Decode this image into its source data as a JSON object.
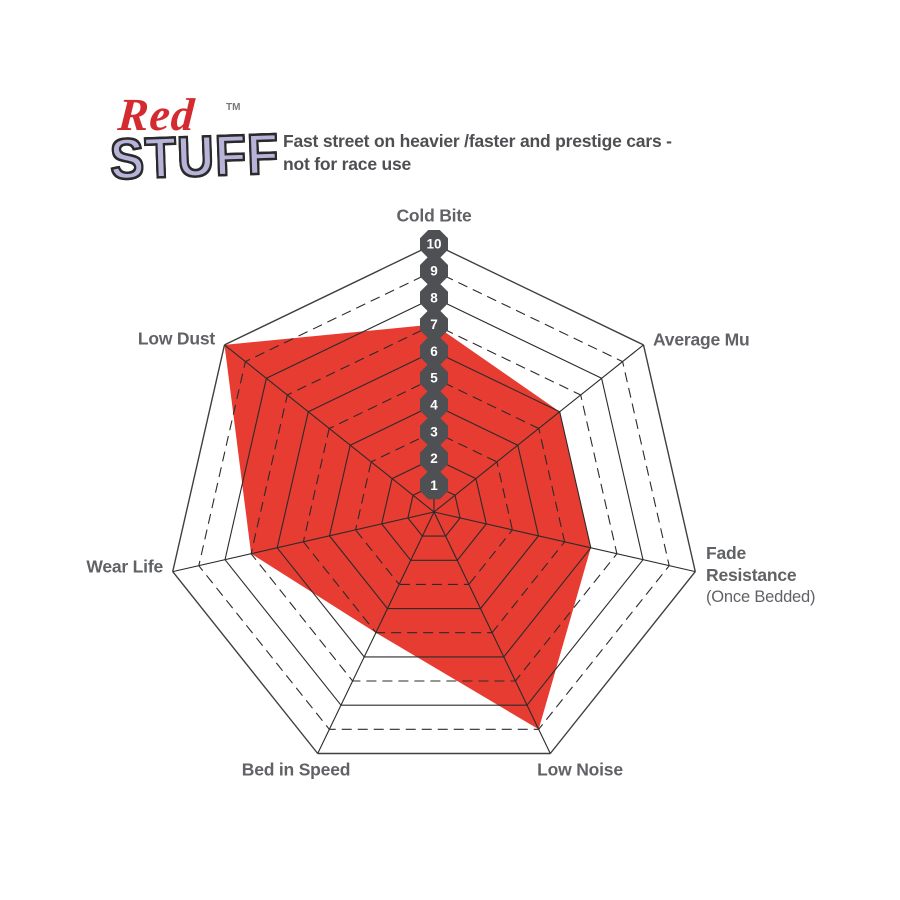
{
  "logo": {
    "red_text": "Red",
    "stuff_text": "STUFF",
    "tm": "TM",
    "red_color": "#d42b30",
    "stuff_color": "#b7b3d9"
  },
  "header": {
    "description": "Fast street on heavier /faster and prestige cars -\nnot for race use"
  },
  "labels": {
    "cold_bite": "Cold Bite",
    "average_mu": "Average Mu",
    "fade_line1": "Fade",
    "fade_line2": "Resistance",
    "fade_sub": "(Once Bedded)",
    "low_noise": "Low Noise",
    "bed_in_speed": "Bed in Speed",
    "wear_life": "Wear Life",
    "low_dust": "Low Dust"
  },
  "chart_data": {
    "type": "radar",
    "categories": [
      "Cold Bite",
      "Average Mu",
      "Fade Resistance (Once Bedded)",
      "Low Noise",
      "Bed in Speed",
      "Wear Life",
      "Low Dust"
    ],
    "series": [
      {
        "name": "RedStuff",
        "values": [
          7,
          6,
          6,
          9,
          5,
          7,
          10
        ]
      }
    ],
    "scale": {
      "min": 0,
      "max": 10,
      "ticks": [
        1,
        2,
        3,
        4,
        5,
        6,
        7,
        8,
        9,
        10
      ]
    },
    "rings": 10,
    "dashed_rings": [
      3,
      5,
      7,
      9
    ],
    "legend": "none",
    "grid": true,
    "colors": {
      "fill": "#e73c31",
      "grid_line": "#2b2b2d",
      "outer_line": "#3e3f41",
      "badge_fill": "#4e5054",
      "badge_text": "#ffffff",
      "label_text": "#616266"
    }
  }
}
